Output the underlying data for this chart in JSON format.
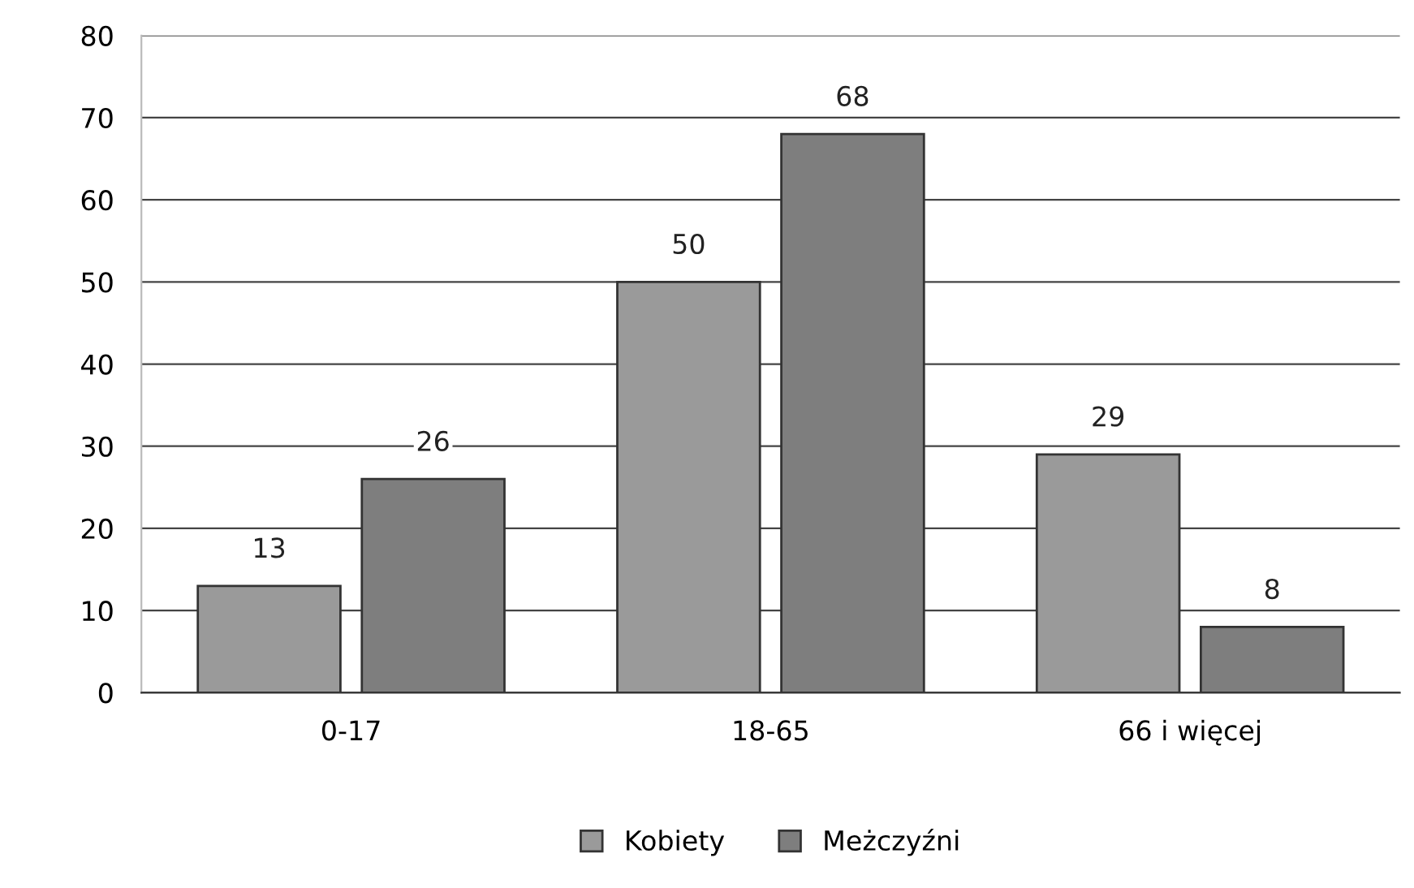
{
  "chart_data": {
    "type": "bar",
    "categories": [
      "0-17",
      "18-65",
      "66 i więcej"
    ],
    "series": [
      {
        "name": "Kobiety",
        "color": "#9a9a9a",
        "values": [
          13,
          50,
          29
        ]
      },
      {
        "name": "Meżczyźni",
        "color": "#7e7e7e",
        "values": [
          26,
          68,
          8
        ]
      }
    ],
    "ylim": [
      0,
      80
    ],
    "yticks": [
      0,
      10,
      20,
      30,
      40,
      50,
      60,
      70,
      80
    ],
    "grid": "y",
    "legend": "bottom",
    "data_labels": true
  }
}
